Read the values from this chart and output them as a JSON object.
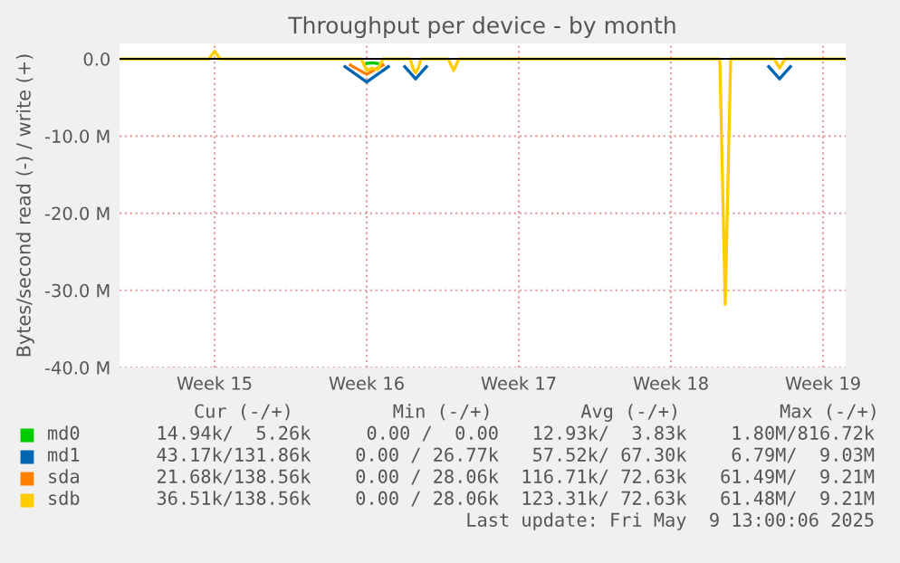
{
  "chart_data": {
    "type": "line",
    "title": "Throughput per device - by month",
    "ylabel": "Bytes/second read (-) / write (+)",
    "series": [
      {
        "name": "md0",
        "color": "#00cc00",
        "x": [
          "2025-04-17T12:00",
          "2025-04-17T18:00",
          "2025-04-18T00:00"
        ],
        "values": [
          -600000,
          -500000,
          -600000
        ]
      },
      {
        "name": "md1",
        "color": "#0066b3",
        "x": [
          "2025-04-16T12:00",
          "2025-04-17T12:00",
          "2025-04-18T12:00",
          "2025-04-18T18:00",
          "2025-04-19T06:00",
          "2025-04-19T18:00",
          "2025-04-20T06:00",
          "2025-04-20T12:00",
          "2025-05-06T00:00",
          "2025-05-06T12:00",
          "2025-05-07T00:00"
        ],
        "values": [
          -1000000,
          -3000000,
          -1000000,
          null,
          -1000000,
          -2600000,
          -1000000,
          null,
          -1000000,
          -2600000,
          -1000000
        ]
      },
      {
        "name": "sda",
        "color": "#ff8000",
        "x": [
          "2025-04-16T18:00",
          "2025-04-17T12:00",
          "2025-04-18T06:00"
        ],
        "values": [
          -800000,
          -2000000,
          -800000
        ]
      },
      {
        "name": "sdb",
        "color": "#ffcc00",
        "x": [
          "2025-04-06T03:00",
          "2025-04-10T06:00",
          "2025-04-10T12:00",
          "2025-04-10T18:00",
          "2025-04-17T06:00",
          "2025-04-17T12:00",
          "2025-04-17T18:00",
          "2025-04-18T00:00",
          "2025-04-18T06:00",
          "2025-04-19T12:00",
          "2025-04-19T15:00",
          "2025-04-19T18:00",
          "2025-04-19T21:00",
          "2025-04-20T00:00",
          "2025-04-21T06:00",
          "2025-04-21T12:00",
          "2025-04-21T18:00",
          "2025-05-03T18:00",
          "2025-05-04T00:00",
          "2025-05-04T06:00",
          "2025-05-06T06:00",
          "2025-05-06T12:00",
          "2025-05-06T18:00",
          "2025-05-09T13:00"
        ],
        "values": [
          0,
          0,
          1000000,
          0,
          0,
          -1500000,
          -1200000,
          -1400000,
          0,
          0,
          -1200000,
          -1800000,
          -1200000,
          0,
          0,
          -1500000,
          0,
          0,
          -31800000,
          0,
          0,
          -1200000,
          0,
          0
        ]
      }
    ],
    "xlim": [
      "2025-04-06T03:00",
      "2025-05-09T13:00"
    ],
    "xticks": [
      {
        "value": "2025-04-10T12:00",
        "label": "Week 15"
      },
      {
        "value": "2025-04-17T12:00",
        "label": "Week 16"
      },
      {
        "value": "2025-04-24T12:00",
        "label": "Week 17"
      },
      {
        "value": "2025-05-01T12:00",
        "label": "Week 18"
      },
      {
        "value": "2025-05-08T12:00",
        "label": "Week 19"
      }
    ],
    "ylim": [
      -40000000,
      2000000
    ],
    "yticks": [
      {
        "value": 0,
        "label": "0.0"
      },
      {
        "value": -10000000,
        "label": "-10.0 M"
      },
      {
        "value": -20000000,
        "label": "-20.0 M"
      },
      {
        "value": -30000000,
        "label": "-30.0 M"
      },
      {
        "value": -40000000,
        "label": "-40.0 M"
      }
    ],
    "grid": true,
    "legend": "bottom",
    "ref_lines": [
      {
        "axis": "y",
        "value": 0,
        "color": "#000000"
      }
    ],
    "annotations": [
      "Cur (-/+)         Min (-/+)        Avg (-/+)         Max (-/+)",
      "14.94k/  5.26k     0.00 /  0.00   12.93k/  3.83k    1.80M/816.72k",
      "43.17k/131.86k    0.00 / 26.77k   57.52k/ 67.30k    6.79M/  9.03M",
      "21.68k/138.56k    0.00 / 28.06k  116.71k/ 72.63k   61.49M/  9.21M",
      "36.51k/138.56k    0.00 / 28.06k  123.31k/ 72.63k   61.48M/  9.21M",
      "Last update: Fri May  9 13:00:06 2025"
    ]
  }
}
